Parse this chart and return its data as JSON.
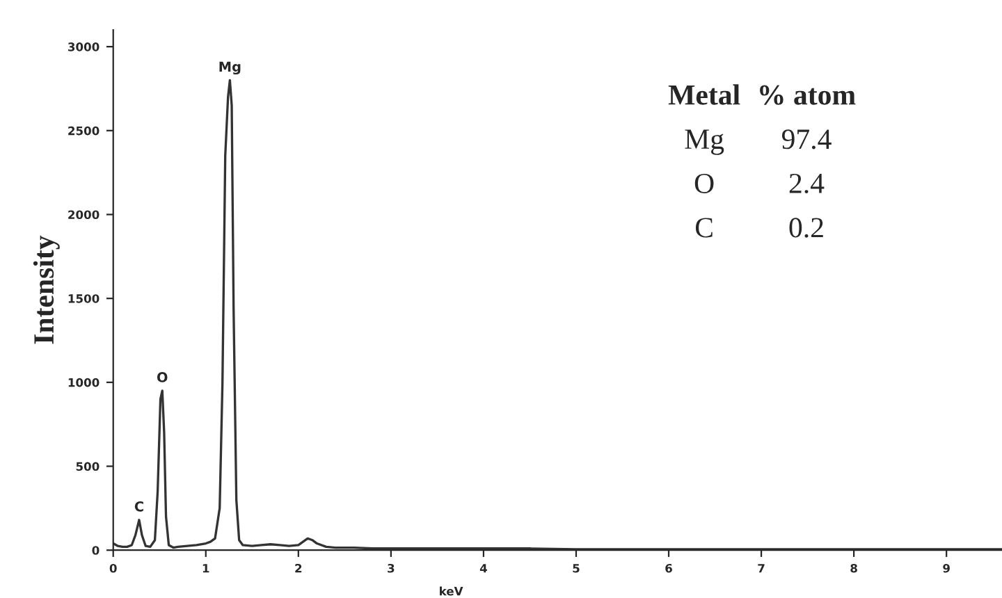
{
  "chart_data": {
    "type": "line",
    "xlabel": "keV",
    "ylabel": "Intensity",
    "x": [
      0,
      0.05,
      0.1,
      0.15,
      0.2,
      0.24,
      0.28,
      0.31,
      0.35,
      0.4,
      0.45,
      0.48,
      0.51,
      0.53,
      0.55,
      0.57,
      0.6,
      0.65,
      0.7,
      0.8,
      0.9,
      1.0,
      1.05,
      1.1,
      1.15,
      1.18,
      1.21,
      1.24,
      1.26,
      1.28,
      1.3,
      1.33,
      1.36,
      1.4,
      1.5,
      1.6,
      1.7,
      1.8,
      1.9,
      2.0,
      2.05,
      2.1,
      2.15,
      2.2,
      2.3,
      2.4,
      2.6,
      2.8,
      3.0,
      3.3,
      3.6,
      4.0,
      4.5,
      5.0,
      5.5,
      6.0,
      7.0,
      8.0,
      9.0,
      9.6
    ],
    "series": [
      {
        "color": "#333333",
        "values": [
          40,
          25,
          20,
          20,
          30,
          90,
          180,
          90,
          25,
          20,
          60,
          350,
          900,
          950,
          700,
          200,
          30,
          15,
          20,
          25,
          30,
          40,
          50,
          70,
          250,
          1000,
          2350,
          2700,
          2800,
          2650,
          1450,
          300,
          60,
          30,
          25,
          30,
          35,
          30,
          25,
          30,
          50,
          70,
          60,
          40,
          20,
          15,
          15,
          10,
          10,
          10,
          10,
          10,
          10,
          5,
          5,
          5,
          5,
          5,
          5,
          5
        ]
      }
    ],
    "xlim": [
      0,
      9.6
    ],
    "ylim": [
      0,
      3100
    ],
    "xticks": [
      0,
      1,
      2,
      3,
      4,
      5,
      6,
      7,
      8,
      9
    ],
    "yticks": [
      0,
      500,
      1000,
      1500,
      2000,
      2500,
      3000
    ],
    "grid": false,
    "annotations": [
      {
        "text": "C",
        "x": 0.28,
        "y": 180
      },
      {
        "text": "O",
        "x": 0.53,
        "y": 950
      },
      {
        "text": "Mg",
        "x": 1.26,
        "y": 2800
      },
      "Metal",
      "% atom",
      "Mg",
      "97.4",
      "O",
      "2.4",
      "C",
      "0.2"
    ]
  }
}
